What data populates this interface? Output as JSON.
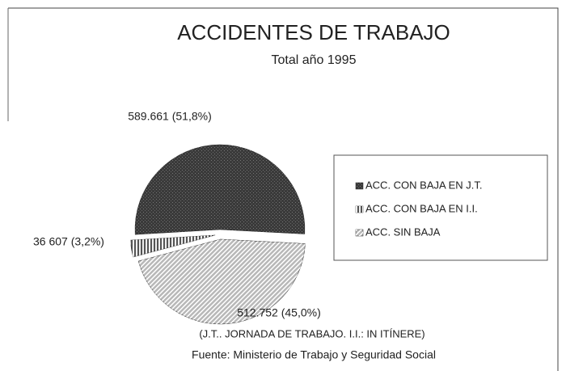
{
  "chart_data": {
    "type": "pie",
    "title": "ACCIDENTES DE TRABAJO",
    "subtitle": "Total año 1995",
    "categories": [
      "ACC. CON BAJA EN J.T.",
      "ACC. CON BAJA EN I.I.",
      "ACC. SIN BAJA"
    ],
    "values": [
      589661,
      36607,
      512752
    ],
    "value_labels": [
      "589.661 (51,8%)",
      "36 607 (3,2%)",
      "512.752 (45,0%)"
    ],
    "colors": [
      "#3a3a3a",
      "#555555",
      "#b8b8b8"
    ],
    "legend": "right",
    "notes": [
      "(J.T.. JORNADA DE TRABAJO. I.I.: IN ITÍNERE)",
      "Fuente: Ministerio de Trabajo y Seguridad Social"
    ]
  }
}
